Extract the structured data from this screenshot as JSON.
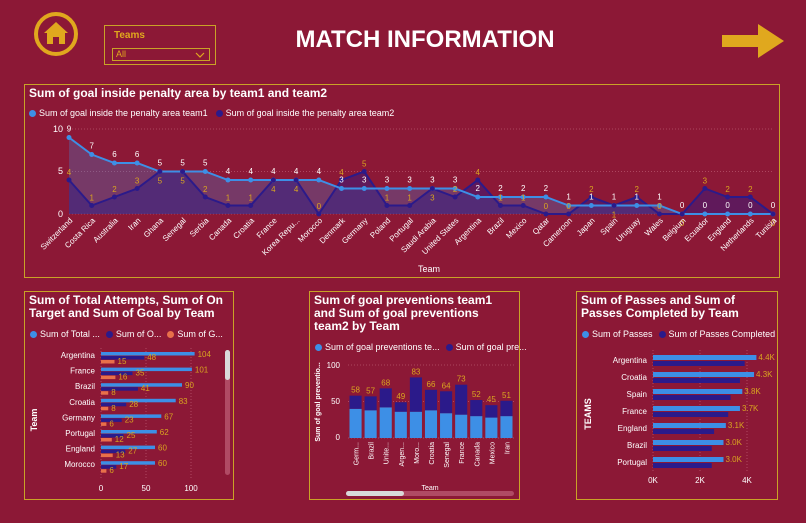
{
  "header": {
    "title": "MATCH INFORMATION",
    "filter_label": "Teams",
    "filter_value": "All"
  },
  "colors": {
    "light": "#3d8fe6",
    "dark": "#2b1a8a",
    "orange": "#e8704a",
    "gold": "#d9a520"
  },
  "chart1": {
    "title": "Sum of goal inside penalty area by team1 and team2",
    "legend": [
      "Sum of goal inside the penalty area team1",
      "Sum of goal inside the penalty area team2"
    ],
    "xlabel": "Team",
    "yticks": [
      "10",
      "5",
      "0"
    ]
  },
  "chart2": {
    "title": "Sum of Total Attempts, Sum of On Target and Sum of Goal by Team",
    "legend": [
      "Sum of Total ...",
      "Sum of O...",
      "Sum of G..."
    ],
    "ylabel": "Team",
    "xticks": [
      "0",
      "50",
      "100"
    ]
  },
  "chart3": {
    "title": "Sum of goal preventions team1 and Sum of goal preventions team2 by Team",
    "legend": [
      "Sum of goal preventions te...",
      "Sum of goal pre..."
    ],
    "ylabel": "Sum of goal preventio...",
    "xlabel": "Team",
    "yticks": [
      "100",
      "50",
      "0"
    ]
  },
  "chart4": {
    "title": "Sum of Passes and Sum of Passes Completed by Team",
    "legend": [
      "Sum of Passes",
      "Sum of Passes Completed"
    ],
    "ylabel": "TEAMS",
    "xticks": [
      "0K",
      "2K",
      "4K"
    ]
  },
  "chart_data": [
    {
      "type": "area",
      "title": "Sum of goal inside penalty area by team1 and team2",
      "xlabel": "Team",
      "ylabel": "",
      "ylim": [
        0,
        10
      ],
      "categories": [
        "Switzerland",
        "Costa Rica",
        "Australia",
        "Iran",
        "Ghana",
        "Senegal",
        "Serbia",
        "Canada",
        "Croatia",
        "France",
        "Korea Repu...",
        "Morocco",
        "Denmark",
        "Germany",
        "Poland",
        "Portugal",
        "Saudi Arabia",
        "United States",
        "Argentina",
        "Brazil",
        "Mexico",
        "Qatar",
        "Cameroon",
        "Japan",
        "Spain",
        "Uruguay",
        "Wales",
        "Belgium",
        "Ecuador",
        "England",
        "Netherlands",
        "Tunisia"
      ],
      "series": [
        {
          "name": "Sum of goal inside the penalty area team1",
          "values": [
            9,
            7,
            6,
            6,
            5,
            5,
            5,
            4,
            4,
            4,
            4,
            4,
            3,
            3,
            3,
            3,
            3,
            3,
            2,
            2,
            2,
            2,
            1,
            1,
            1,
            1,
            1,
            0,
            0,
            0,
            0,
            0
          ]
        },
        {
          "name": "Sum of goal inside the penalty area team2",
          "values": [
            4,
            1,
            2,
            3,
            5,
            5,
            2,
            1,
            1,
            4,
            4,
            0,
            4,
            5,
            1,
            1,
            3,
            2,
            4,
            1,
            1,
            0,
            0,
            2,
            1,
            2,
            0,
            0,
            3,
            2,
            2,
            0
          ]
        }
      ]
    },
    {
      "type": "bar",
      "title": "Sum of Total Attempts, Sum of On Target and Sum of Goal by Team",
      "ylabel": "Team",
      "xlim": [
        0,
        110
      ],
      "categories": [
        "Argentina",
        "France",
        "Brazil",
        "Croatia",
        "Germany",
        "Portugal",
        "England",
        "Morocco"
      ],
      "series": [
        {
          "name": "Sum of Total Attempts",
          "values": [
            104,
            101,
            90,
            83,
            67,
            62,
            60,
            60
          ]
        },
        {
          "name": "Sum of On Target",
          "values": [
            48,
            35,
            41,
            28,
            23,
            25,
            27,
            17
          ]
        },
        {
          "name": "Sum of Goal",
          "values": [
            15,
            16,
            8,
            8,
            6,
            12,
            13,
            6
          ]
        }
      ]
    },
    {
      "type": "bar",
      "title": "Sum of goal preventions team1 and Sum of goal preventions team2 by Team",
      "xlabel": "Team",
      "ylabel": "Sum of goal preventio...",
      "ylim": [
        0,
        110
      ],
      "categories": [
        "Germ...",
        "Brazil",
        "Unite...",
        "Argen...",
        "Moro...",
        "Croatia",
        "Senegal",
        "France",
        "Canada",
        "Mexico",
        "Iran"
      ],
      "totals": [
        58,
        57,
        68,
        49,
        83,
        66,
        64,
        73,
        52,
        45,
        51
      ],
      "series": [
        {
          "name": "Sum of goal preventions team1",
          "values": [
            40,
            38,
            42,
            36,
            36,
            38,
            34,
            32,
            30,
            28,
            30
          ]
        },
        {
          "name": "Sum of goal preventions team2",
          "values": [
            18,
            19,
            26,
            13,
            47,
            28,
            30,
            41,
            22,
            17,
            21
          ]
        }
      ]
    },
    {
      "type": "bar",
      "title": "Sum of Passes and Sum of Passes Completed by Team",
      "ylabel": "TEAMS",
      "xlim": [
        0,
        4800
      ],
      "categories": [
        "Argentina",
        "Croatia",
        "Spain",
        "France",
        "England",
        "Brazil",
        "Portugal"
      ],
      "labels": [
        "4.4K",
        "4.3K",
        "3.8K",
        "3.7K",
        "3.1K",
        "3.0K",
        "3.0K"
      ],
      "series": [
        {
          "name": "Sum of Passes",
          "values": [
            4400,
            4300,
            3800,
            3700,
            3100,
            3000,
            3000
          ]
        },
        {
          "name": "Sum of Passes Completed",
          "values": [
            3900,
            3700,
            3300,
            3200,
            2600,
            2500,
            2500
          ]
        }
      ]
    }
  ]
}
